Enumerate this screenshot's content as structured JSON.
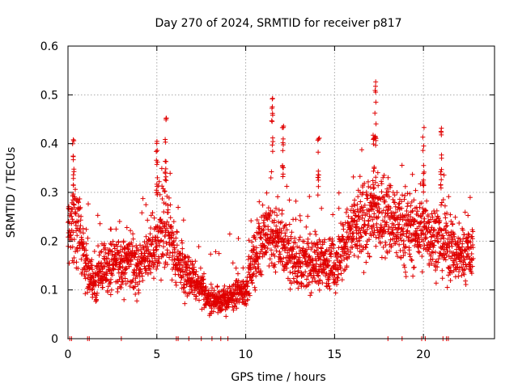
{
  "chart_data": {
    "type": "scatter",
    "title": "Day 270 of 2024, SRMTID for receiver p817",
    "xlabel": "GPS time / hours",
    "ylabel": "SRMTID / TECUs",
    "xlim": [
      0,
      24
    ],
    "ylim": [
      0,
      0.6
    ],
    "xticks": [
      0,
      5,
      10,
      15,
      20
    ],
    "yticks": [
      0,
      0.1,
      0.2,
      0.3,
      0.4,
      0.5,
      0.6
    ],
    "grid": true,
    "marker": "+",
    "marker_color": "#e00000",
    "envelope": {
      "description": "approximate typical level of the data cloud (data units)",
      "x": [
        0,
        0.5,
        1,
        1.5,
        2,
        3,
        4,
        5,
        5.5,
        6,
        7,
        8,
        9,
        10,
        10.5,
        11,
        12,
        13,
        14,
        15,
        16,
        17,
        18,
        19,
        20,
        21,
        22,
        22.8
      ],
      "y": [
        0.22,
        0.25,
        0.15,
        0.11,
        0.15,
        0.15,
        0.15,
        0.2,
        0.24,
        0.17,
        0.12,
        0.08,
        0.08,
        0.1,
        0.16,
        0.22,
        0.2,
        0.15,
        0.16,
        0.15,
        0.22,
        0.25,
        0.25,
        0.22,
        0.22,
        0.2,
        0.17,
        0.18
      ]
    },
    "peaks": [
      {
        "x": 0.3,
        "y": 0.41
      },
      {
        "x": 5.5,
        "y": 0.46
      },
      {
        "x": 11.5,
        "y": 0.5
      },
      {
        "x": 14.1,
        "y": 0.43
      },
      {
        "x": 17.3,
        "y": 0.53
      },
      {
        "x": 17.2,
        "y": 0.42
      },
      {
        "x": 20,
        "y": 0.44
      },
      {
        "x": 21,
        "y": 0.44
      },
      {
        "x": 5,
        "y": 0.41
      },
      {
        "x": 12.1,
        "y": 0.44
      }
    ],
    "zero_points_x": [
      0.1,
      0.2,
      1.1,
      1.2,
      3,
      6.1,
      6.2,
      6.8,
      7.5,
      8.1,
      8.6,
      9,
      18,
      18.8,
      19.9,
      20.1,
      21.1,
      21.3,
      21.4
    ]
  }
}
